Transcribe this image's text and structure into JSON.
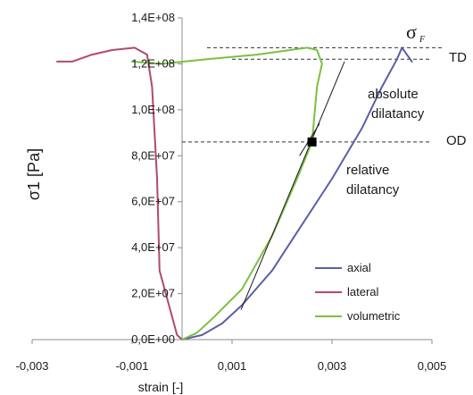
{
  "chart_data": {
    "type": "line",
    "xlabel": "strain [-]",
    "ylabel": "σ1 [Pa]",
    "xlim": [
      -0.003,
      0.005
    ],
    "ylim": [
      0,
      140000000
    ],
    "x_tick_values": [
      -0.003,
      -0.001,
      0.001,
      0.003,
      0.005
    ],
    "x_tick_labels": [
      "-0,003",
      "-0,001",
      "0,001",
      "0,003",
      "0,005"
    ],
    "y_tick_values": [
      0,
      20000000,
      40000000,
      60000000,
      80000000,
      100000000,
      120000000,
      140000000
    ],
    "y_tick_labels": [
      "0,0E+00",
      "2,0E+07",
      "4,0E+07",
      "6,0E+07",
      "8,0E+07",
      "1,0E+08",
      "1,2E+08",
      "1,4E+08"
    ],
    "grid": false,
    "legend_position": "bottom-right",
    "series": [
      {
        "name": "axial",
        "color": "#5b5ea6",
        "points": [
          [
            0,
            0
          ],
          [
            0.0004,
            2000000
          ],
          [
            0.0008,
            7000000
          ],
          [
            0.0012,
            15000000
          ],
          [
            0.0018,
            30000000
          ],
          [
            0.0024,
            50000000
          ],
          [
            0.003,
            70000000
          ],
          [
            0.0036,
            92000000
          ],
          [
            0.004,
            110000000
          ],
          [
            0.0043,
            122000000
          ],
          [
            0.0044,
            127000000
          ],
          [
            0.0046,
            121000000
          ]
        ]
      },
      {
        "name": "lateral",
        "color": "#b04a6a",
        "points": [
          [
            -0.0025,
            121000000
          ],
          [
            -0.0022,
            121000000
          ],
          [
            -0.0018,
            124000000
          ],
          [
            -0.0014,
            126000000
          ],
          [
            -0.00095,
            127000000
          ],
          [
            -0.0007,
            124000000
          ],
          [
            -0.0006,
            110000000
          ],
          [
            -0.0005,
            70000000
          ],
          [
            -0.00045,
            30000000
          ],
          [
            -0.0001,
            2000000
          ],
          [
            0,
            0
          ]
        ]
      },
      {
        "name": "volumetric",
        "color": "#7bc043",
        "points": [
          [
            -0.001,
            121000000
          ],
          [
            -0.0004,
            120000000
          ],
          [
            0.0005,
            122000000
          ],
          [
            0.0015,
            124000000
          ],
          [
            0.0025,
            127000000
          ],
          [
            0.0027,
            126000000
          ],
          [
            0.0028,
            120000000
          ],
          [
            0.0027,
            110000000
          ],
          [
            0.0026,
            86000000
          ],
          [
            0.0023,
            70000000
          ],
          [
            0.0018,
            45000000
          ],
          [
            0.0012,
            22000000
          ],
          [
            0.0006,
            9000000
          ],
          [
            0.0003,
            3000000
          ],
          [
            0,
            0
          ]
        ]
      }
    ],
    "tangent_lines": [
      {
        "color": "#1a1a1a",
        "points": [
          [
            0.00118,
            13000000
          ],
          [
            0.00325,
            121000000
          ]
        ]
      },
      {
        "color": "#1a1a1a",
        "points": [
          [
            0.00235,
            80000000
          ],
          [
            0.00275,
            94000000
          ]
        ]
      }
    ],
    "marker": {
      "x": 0.0026,
      "y": 86000000,
      "color": "#000000"
    },
    "reference_lines": [
      {
        "y": 127000000,
        "x_from": 0.0005,
        "x_to": 0.00525,
        "label": ""
      },
      {
        "y": 122000000,
        "x_from": 0.001,
        "x_to": 0.005,
        "label": "TD"
      },
      {
        "y": 86000000,
        "x_from": 0.0,
        "x_to": 0.005,
        "label": "OD"
      }
    ],
    "annotations": {
      "sigma_f": "σ",
      "sigma_f_sub": "F",
      "absolute_line1": "absolute",
      "absolute_line2": "dilatancy",
      "relative_line1": "relative",
      "relative_line2": "dilatancy"
    }
  }
}
